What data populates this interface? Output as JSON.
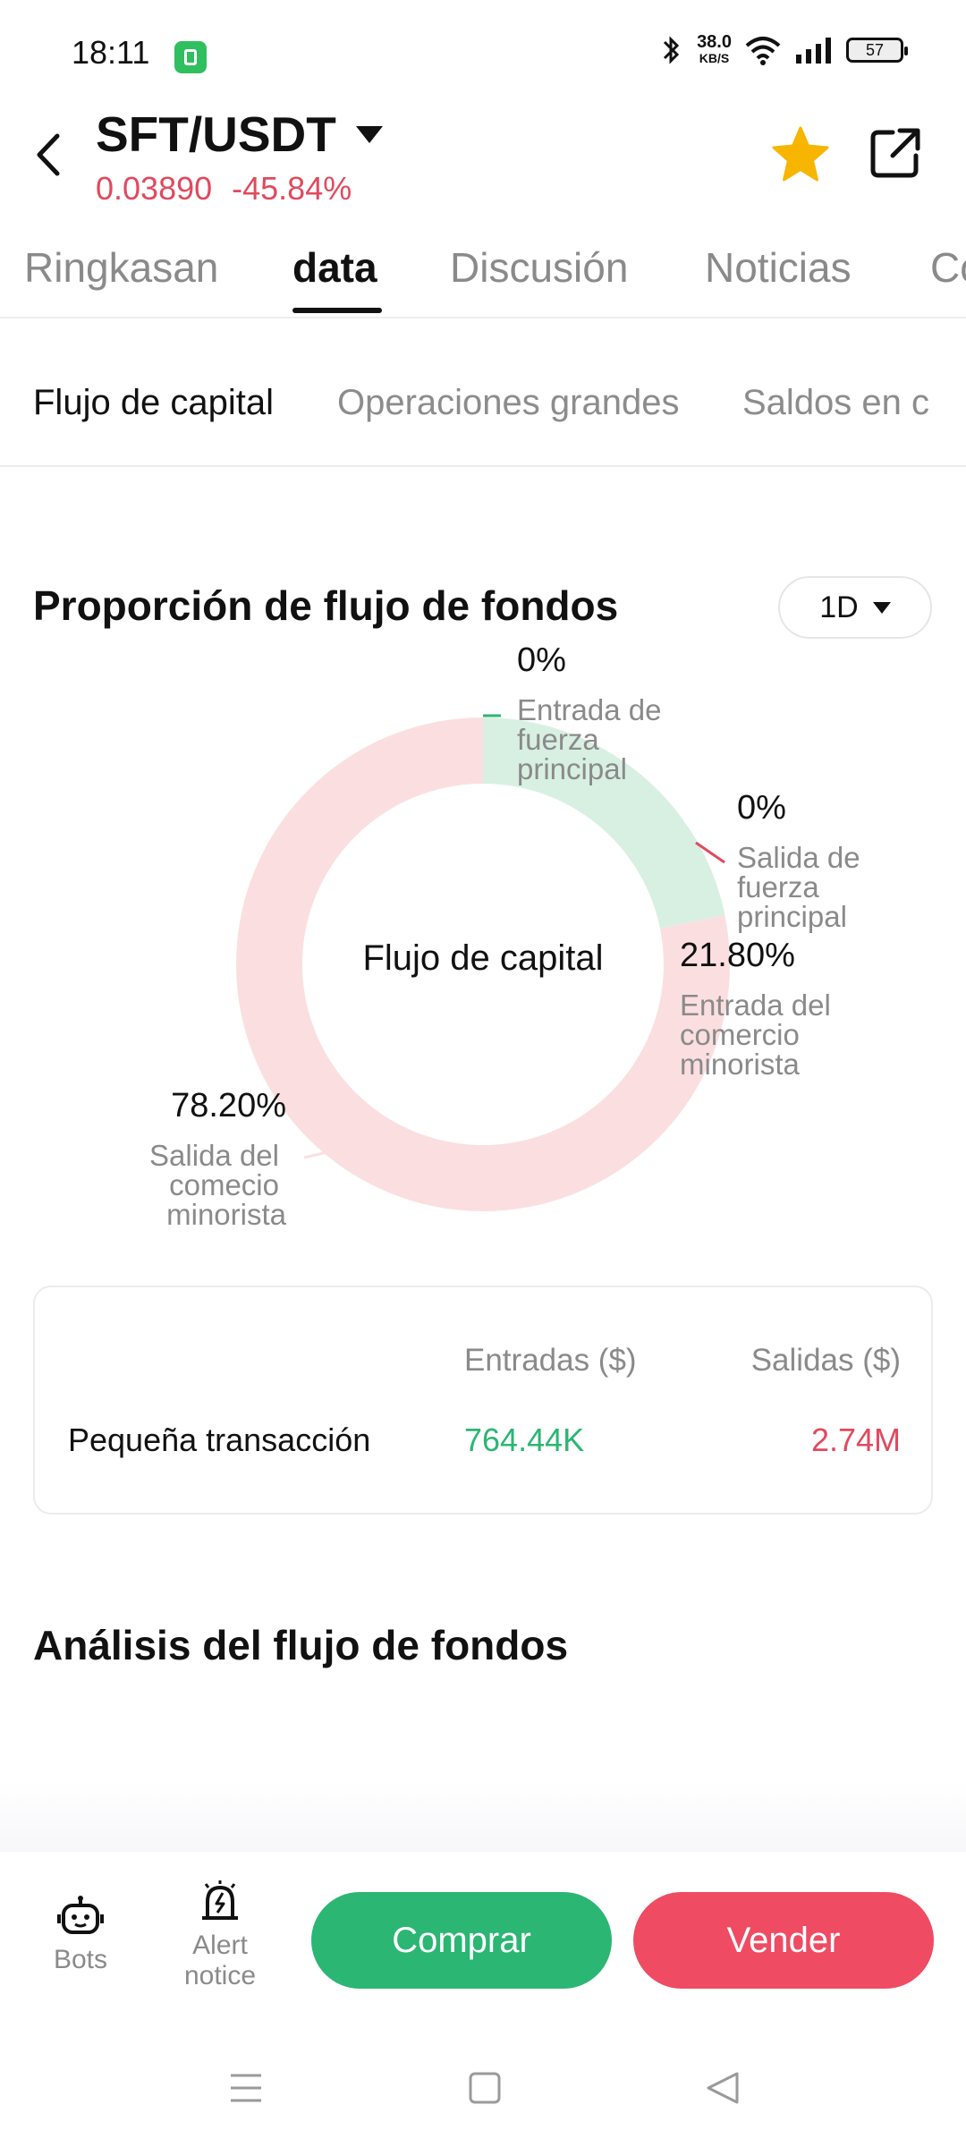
{
  "status": {
    "time": "18:11",
    "speed": "38.0",
    "speed_unit": "KB/S",
    "battery": "57"
  },
  "header": {
    "pair": "SFT/USDT",
    "price": "0.03890",
    "change": "-45.84%"
  },
  "tabs": [
    {
      "label": "Ringkasan"
    },
    {
      "label": "data"
    },
    {
      "label": "Discusión"
    },
    {
      "label": "Noticias"
    },
    {
      "label": "Co"
    }
  ],
  "subtabs": [
    {
      "label": "Flujo de capital"
    },
    {
      "label": "Operaciones grandes"
    },
    {
      "label": "Saldos en c"
    }
  ],
  "proportion": {
    "title": "Proporción de flujo de fondos",
    "period": "1D",
    "center_label": "Flujo de capital"
  },
  "chart_data": {
    "type": "pie",
    "slices": [
      {
        "label": "Entrada de fuerza principal",
        "value": 0,
        "value_text": "0%",
        "color": "#2bb673"
      },
      {
        "label": "Salida de fuerza principal",
        "value": 0,
        "value_text": "0%",
        "color": "#e04a5f"
      },
      {
        "label": "Entrada del comercio minorista",
        "value": 21.8,
        "value_text": "21.80%",
        "color": "#d8f0e2"
      },
      {
        "label": "Salida del comecio minorista",
        "value": 78.2,
        "value_text": "78.20%",
        "color": "#fbdfe0"
      }
    ]
  },
  "table": {
    "col_in": "Entradas ($)",
    "col_out": "Salidas ($)",
    "rows": [
      {
        "label": "Pequeña transacción",
        "in": "764.44K",
        "out": "2.74M"
      }
    ]
  },
  "analysis": {
    "title": "Análisis del flujo de fondos"
  },
  "bottom": {
    "bots": "Bots",
    "alert_line1": "Alert",
    "alert_line2": "notice",
    "buy": "Comprar",
    "sell": "Vender"
  }
}
